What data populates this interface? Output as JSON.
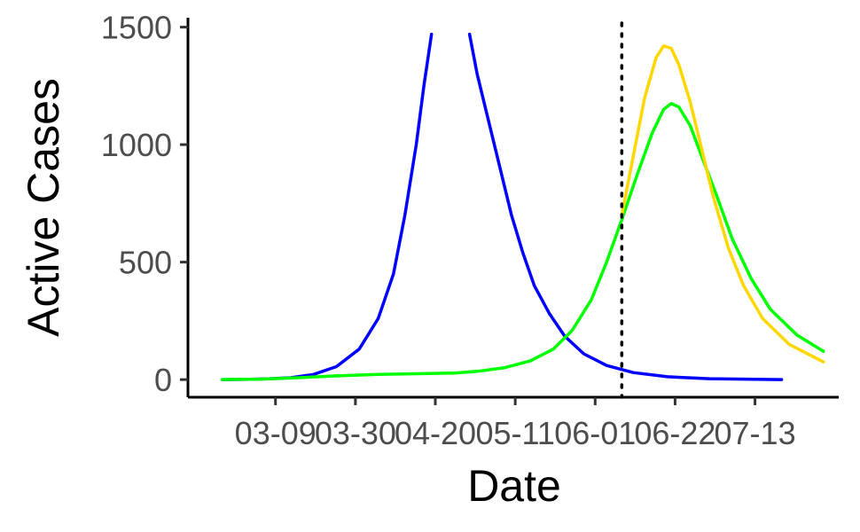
{
  "chart_data": {
    "type": "line",
    "xlabel": "Date",
    "ylabel": "Active Cases",
    "x_tick_labels": [
      "03-09",
      "03-30",
      "04-20",
      "05-11",
      "06-01",
      "06-22",
      "07-13"
    ],
    "x_tick_dates": [
      "2020-03-09",
      "2020-03-30",
      "2020-04-20",
      "2020-05-11",
      "2020-06-01",
      "2020-06-22",
      "2020-07-13"
    ],
    "xlim": [
      "2020-02-15",
      "2020-08-04"
    ],
    "ylim": [
      -75,
      1540
    ],
    "y_ticks": [
      0,
      500,
      1000,
      1500
    ],
    "y_tick_labels": [
      "0",
      "500",
      "1000",
      "1500"
    ],
    "vline_date": "2020-06-08",
    "vline_style": "dotted",
    "grid": false,
    "legend": "none",
    "series": [
      {
        "color": "#0000ff",
        "points": [
          [
            "2020-02-24",
            0
          ],
          [
            "2020-03-01",
            1
          ],
          [
            "2020-03-07",
            3
          ],
          [
            "2020-03-13",
            8
          ],
          [
            "2020-03-19",
            22
          ],
          [
            "2020-03-25",
            55
          ],
          [
            "2020-03-31",
            130
          ],
          [
            "2020-04-05",
            260
          ],
          [
            "2020-04-09",
            450
          ],
          [
            "2020-04-12",
            700
          ],
          [
            "2020-04-15",
            1000
          ],
          [
            "2020-04-17",
            1250
          ],
          [
            "2020-04-19",
            1470
          ],
          null,
          [
            "2020-04-29",
            1470
          ],
          [
            "2020-05-01",
            1300
          ],
          [
            "2020-05-04",
            1100
          ],
          [
            "2020-05-07",
            900
          ],
          [
            "2020-05-10",
            700
          ],
          [
            "2020-05-13",
            540
          ],
          [
            "2020-05-16",
            400
          ],
          [
            "2020-05-20",
            280
          ],
          [
            "2020-05-24",
            185
          ],
          [
            "2020-05-29",
            110
          ],
          [
            "2020-06-04",
            60
          ],
          [
            "2020-06-11",
            30
          ],
          [
            "2020-06-20",
            12
          ],
          [
            "2020-07-01",
            4
          ],
          [
            "2020-07-15",
            1
          ],
          [
            "2020-07-20",
            0
          ]
        ]
      },
      {
        "color": "#00ff00",
        "points": [
          [
            "2020-02-24",
            0
          ],
          [
            "2020-03-05",
            2
          ],
          [
            "2020-03-15",
            8
          ],
          [
            "2020-03-25",
            16
          ],
          [
            "2020-04-05",
            22
          ],
          [
            "2020-04-15",
            25
          ],
          [
            "2020-04-25",
            28
          ],
          [
            "2020-05-01",
            35
          ],
          [
            "2020-05-08",
            50
          ],
          [
            "2020-05-15",
            80
          ],
          [
            "2020-05-21",
            130
          ],
          [
            "2020-05-26",
            210
          ],
          [
            "2020-05-31",
            340
          ],
          [
            "2020-06-04",
            500
          ],
          [
            "2020-06-08",
            680
          ],
          [
            "2020-06-12",
            870
          ],
          [
            "2020-06-16",
            1050
          ],
          [
            "2020-06-19",
            1150
          ],
          [
            "2020-06-21",
            1175
          ],
          [
            "2020-06-23",
            1160
          ],
          [
            "2020-06-26",
            1080
          ],
          [
            "2020-06-29",
            950
          ],
          [
            "2020-07-03",
            780
          ],
          [
            "2020-07-07",
            600
          ],
          [
            "2020-07-12",
            430
          ],
          [
            "2020-07-17",
            300
          ],
          [
            "2020-07-24",
            190
          ],
          [
            "2020-07-31",
            120
          ]
        ]
      },
      {
        "color": "#ffd700",
        "points": [
          [
            "2020-06-08",
            700
          ],
          [
            "2020-06-11",
            950
          ],
          [
            "2020-06-14",
            1200
          ],
          [
            "2020-06-17",
            1370
          ],
          [
            "2020-06-19",
            1420
          ],
          [
            "2020-06-21",
            1410
          ],
          [
            "2020-06-23",
            1340
          ],
          [
            "2020-06-26",
            1180
          ],
          [
            "2020-06-29",
            980
          ],
          [
            "2020-07-02",
            780
          ],
          [
            "2020-07-06",
            560
          ],
          [
            "2020-07-10",
            400
          ],
          [
            "2020-07-15",
            260
          ],
          [
            "2020-07-22",
            150
          ],
          [
            "2020-07-31",
            75
          ]
        ]
      }
    ]
  }
}
